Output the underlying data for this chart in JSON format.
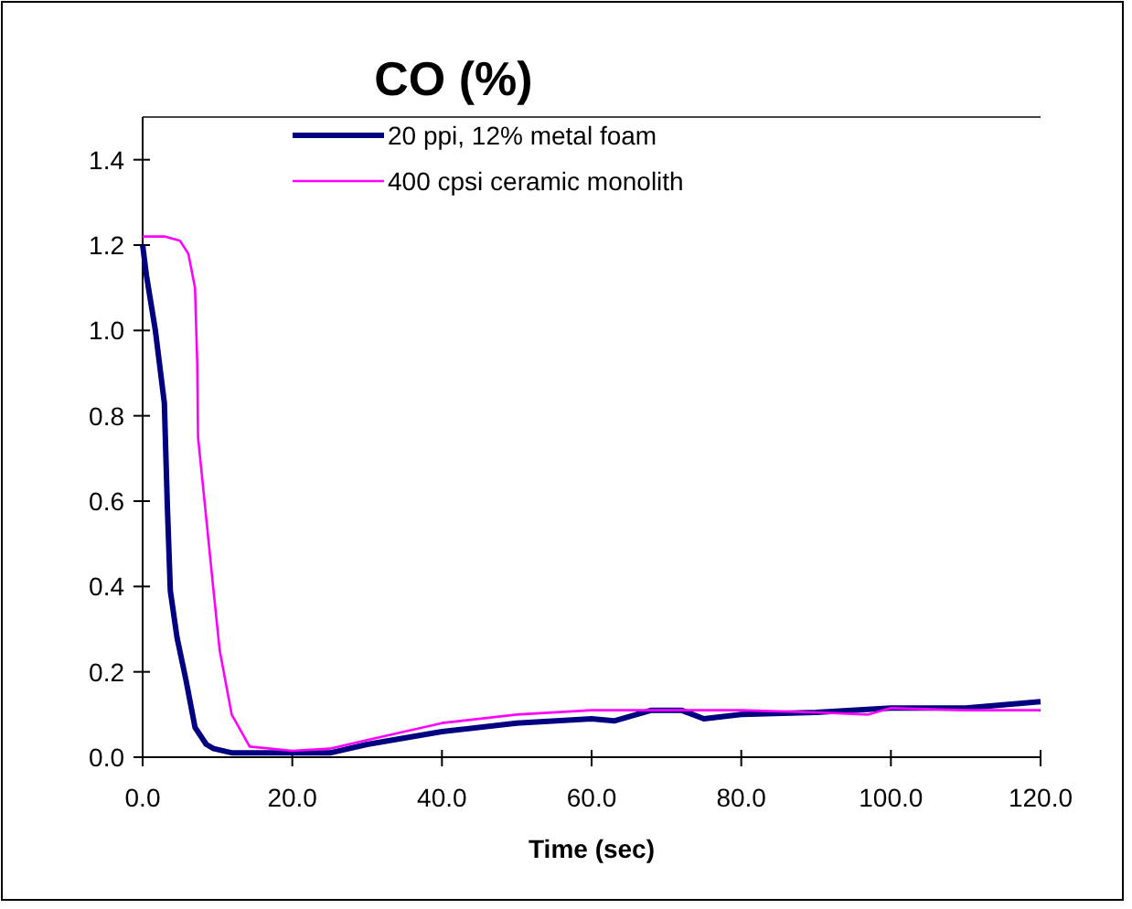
{
  "chart_data": {
    "type": "line",
    "title": "CO (%)",
    "xlabel": "Time (sec)",
    "xlim": [
      0,
      120
    ],
    "xticks": [
      {
        "value": 0,
        "label": "0.0"
      },
      {
        "value": 20,
        "label": "20.0"
      },
      {
        "value": 40,
        "label": "40.0"
      },
      {
        "value": 60,
        "label": "60.0"
      },
      {
        "value": 80,
        "label": "80.0"
      },
      {
        "value": 100,
        "label": "100.0"
      },
      {
        "value": 120,
        "label": "120.0"
      }
    ],
    "ylim": [
      0,
      1.5
    ],
    "yticks": [
      {
        "value": 0,
        "label": "0.0"
      },
      {
        "value": 0.2,
        "label": "0.2"
      },
      {
        "value": 0.4,
        "label": "0.4"
      },
      {
        "value": 0.6,
        "label": "0.6"
      },
      {
        "value": 0.8,
        "label": "0.8"
      },
      {
        "value": 1,
        "label": "1.0"
      },
      {
        "value": 1.2,
        "label": "1.2"
      },
      {
        "value": 1.4,
        "label": "1.4"
      }
    ],
    "grid": false,
    "legend": "top",
    "marker": "none",
    "line_style": "solid",
    "series": [
      {
        "name": "20 ppi, 12% metal foam",
        "color": "#000080",
        "x": [
          0,
          0.5,
          1.7,
          2.9,
          3.3,
          3.7,
          4.6,
          5.8,
          7,
          8.5,
          9.5,
          12,
          20,
          25,
          30,
          40,
          50,
          60,
          63,
          68,
          72,
          75,
          80,
          90,
          100,
          110,
          120
        ],
        "values": [
          1.2,
          1.13,
          1.0,
          0.83,
          0.59,
          0.39,
          0.28,
          0.18,
          0.07,
          0.03,
          0.02,
          0.01,
          0.01,
          0.01,
          0.03,
          0.06,
          0.08,
          0.09,
          0.085,
          0.11,
          0.11,
          0.09,
          0.1,
          0.105,
          0.115,
          0.115,
          0.13
        ]
      },
      {
        "name": "400 cpsi ceramic monolith",
        "color": "#ff00ff",
        "x": [
          0,
          3,
          5,
          6.1,
          7,
          7.3,
          7.4,
          8.5,
          9.3,
          10.3,
          11.9,
          14.3,
          20,
          25,
          30,
          40,
          50,
          60,
          70,
          80,
          90,
          97,
          100,
          110,
          120
        ],
        "values": [
          1.22,
          1.22,
          1.21,
          1.18,
          1.1,
          0.92,
          0.75,
          0.56,
          0.42,
          0.25,
          0.1,
          0.025,
          0.015,
          0.02,
          0.04,
          0.08,
          0.1,
          0.11,
          0.11,
          0.11,
          0.105,
          0.1,
          0.115,
          0.11,
          0.11
        ]
      }
    ]
  }
}
